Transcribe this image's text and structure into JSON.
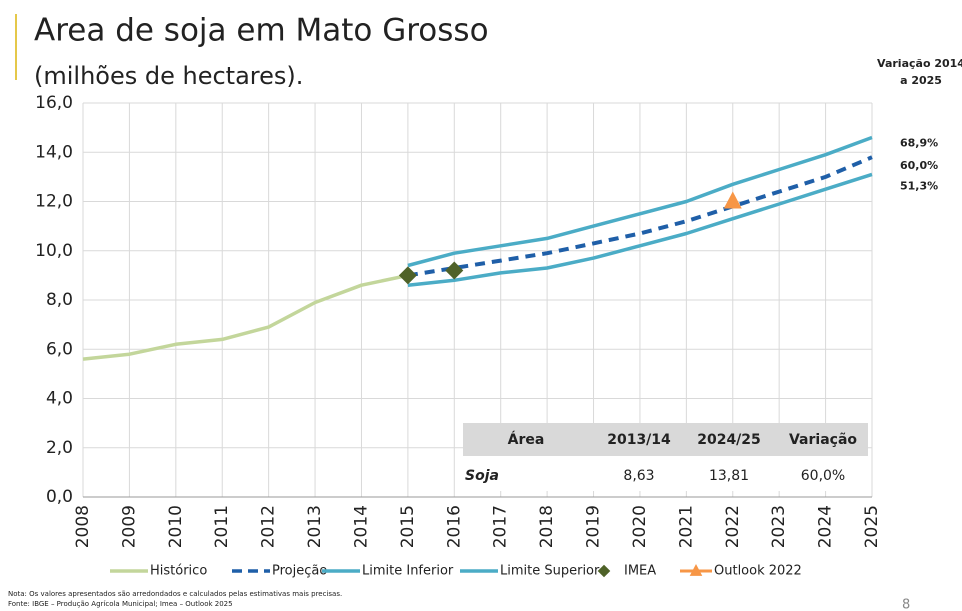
{
  "chart_data": {
    "type": "line",
    "title": "Area de soja em Mato Grosso",
    "subtitle": "(milhões de hectares).",
    "x": [
      2008,
      2009,
      2010,
      2011,
      2012,
      2013,
      2014,
      2015,
      2016,
      2017,
      2018,
      2019,
      2020,
      2021,
      2022,
      2023,
      2024,
      2025
    ],
    "xlim": [
      2008,
      2025
    ],
    "xticks": [
      2008,
      2009,
      2010,
      2011,
      2012,
      2013,
      2014,
      2015,
      2016,
      2017,
      2018,
      2019,
      2020,
      2021,
      2022,
      2023,
      2024,
      2025
    ],
    "ylim": [
      0,
      16
    ],
    "yticks": [
      {
        "value": 0,
        "label": "0,0"
      },
      {
        "value": 2,
        "label": "2,0"
      },
      {
        "value": 4,
        "label": "4,0"
      },
      {
        "value": 6,
        "label": "6,0"
      },
      {
        "value": 8,
        "label": "8,0"
      },
      {
        "value": 10,
        "label": "10,0"
      },
      {
        "value": 12,
        "label": "12,0"
      },
      {
        "value": 14,
        "label": "14,0"
      },
      {
        "value": 16,
        "label": "16,0"
      }
    ],
    "grid": true,
    "series": [
      {
        "name": "Histórico",
        "color": "#c3d69b",
        "style": "solid",
        "values": [
          5.6,
          5.8,
          6.2,
          6.4,
          6.9,
          7.9,
          8.6,
          9.0,
          null,
          null,
          null,
          null,
          null,
          null,
          null,
          null,
          null,
          null
        ]
      },
      {
        "name": "Projeção",
        "color": "#1f5fa8",
        "style": "dashed",
        "values": [
          null,
          null,
          null,
          null,
          null,
          null,
          null,
          9.0,
          9.3,
          9.6,
          9.9,
          10.3,
          10.7,
          11.2,
          11.8,
          12.4,
          13.0,
          13.8
        ]
      },
      {
        "name": "Limite Inferior",
        "color": "#4bacc6",
        "style": "solid",
        "values": [
          null,
          null,
          null,
          null,
          null,
          null,
          null,
          8.6,
          8.8,
          9.1,
          9.3,
          9.7,
          10.2,
          10.7,
          11.3,
          11.9,
          12.5,
          13.1
        ]
      },
      {
        "name": "Limite Superior",
        "color": "#4bacc6",
        "style": "solid",
        "values": [
          null,
          null,
          null,
          null,
          null,
          null,
          null,
          9.4,
          9.9,
          10.2,
          10.5,
          11.0,
          11.5,
          12.0,
          12.7,
          13.3,
          13.9,
          14.6
        ]
      },
      {
        "name": "IMEA",
        "color": "#4f6228",
        "style": "diamond",
        "values": [
          null,
          null,
          null,
          null,
          null,
          null,
          null,
          9.0,
          9.2,
          null,
          null,
          null,
          null,
          null,
          null,
          null,
          null,
          null
        ]
      },
      {
        "name": "Outlook 2022",
        "color": "#f79646",
        "style": "triangle",
        "values": [
          null,
          null,
          null,
          null,
          null,
          null,
          null,
          null,
          null,
          null,
          null,
          null,
          null,
          null,
          12.0,
          null,
          null,
          null
        ]
      }
    ],
    "annotation_title": [
      "Variação 2014",
      "a 2025"
    ],
    "end_labels": [
      "68,9%",
      "60,0%",
      "51,3%"
    ],
    "table": {
      "header": [
        "Área",
        "2013/14",
        "2024/25",
        "Variação"
      ],
      "rows": [
        [
          "Soja",
          "8,63",
          "13,81",
          "60,0%"
        ]
      ]
    },
    "notes": [
      "Nota: Os valores apresentados são arredondados e calculados pelas estimativas mais precisas.",
      "Fonte: IBGE – Produção Agrícola Municipal; Imea – Outlook 2025"
    ],
    "page_number": "8"
  }
}
